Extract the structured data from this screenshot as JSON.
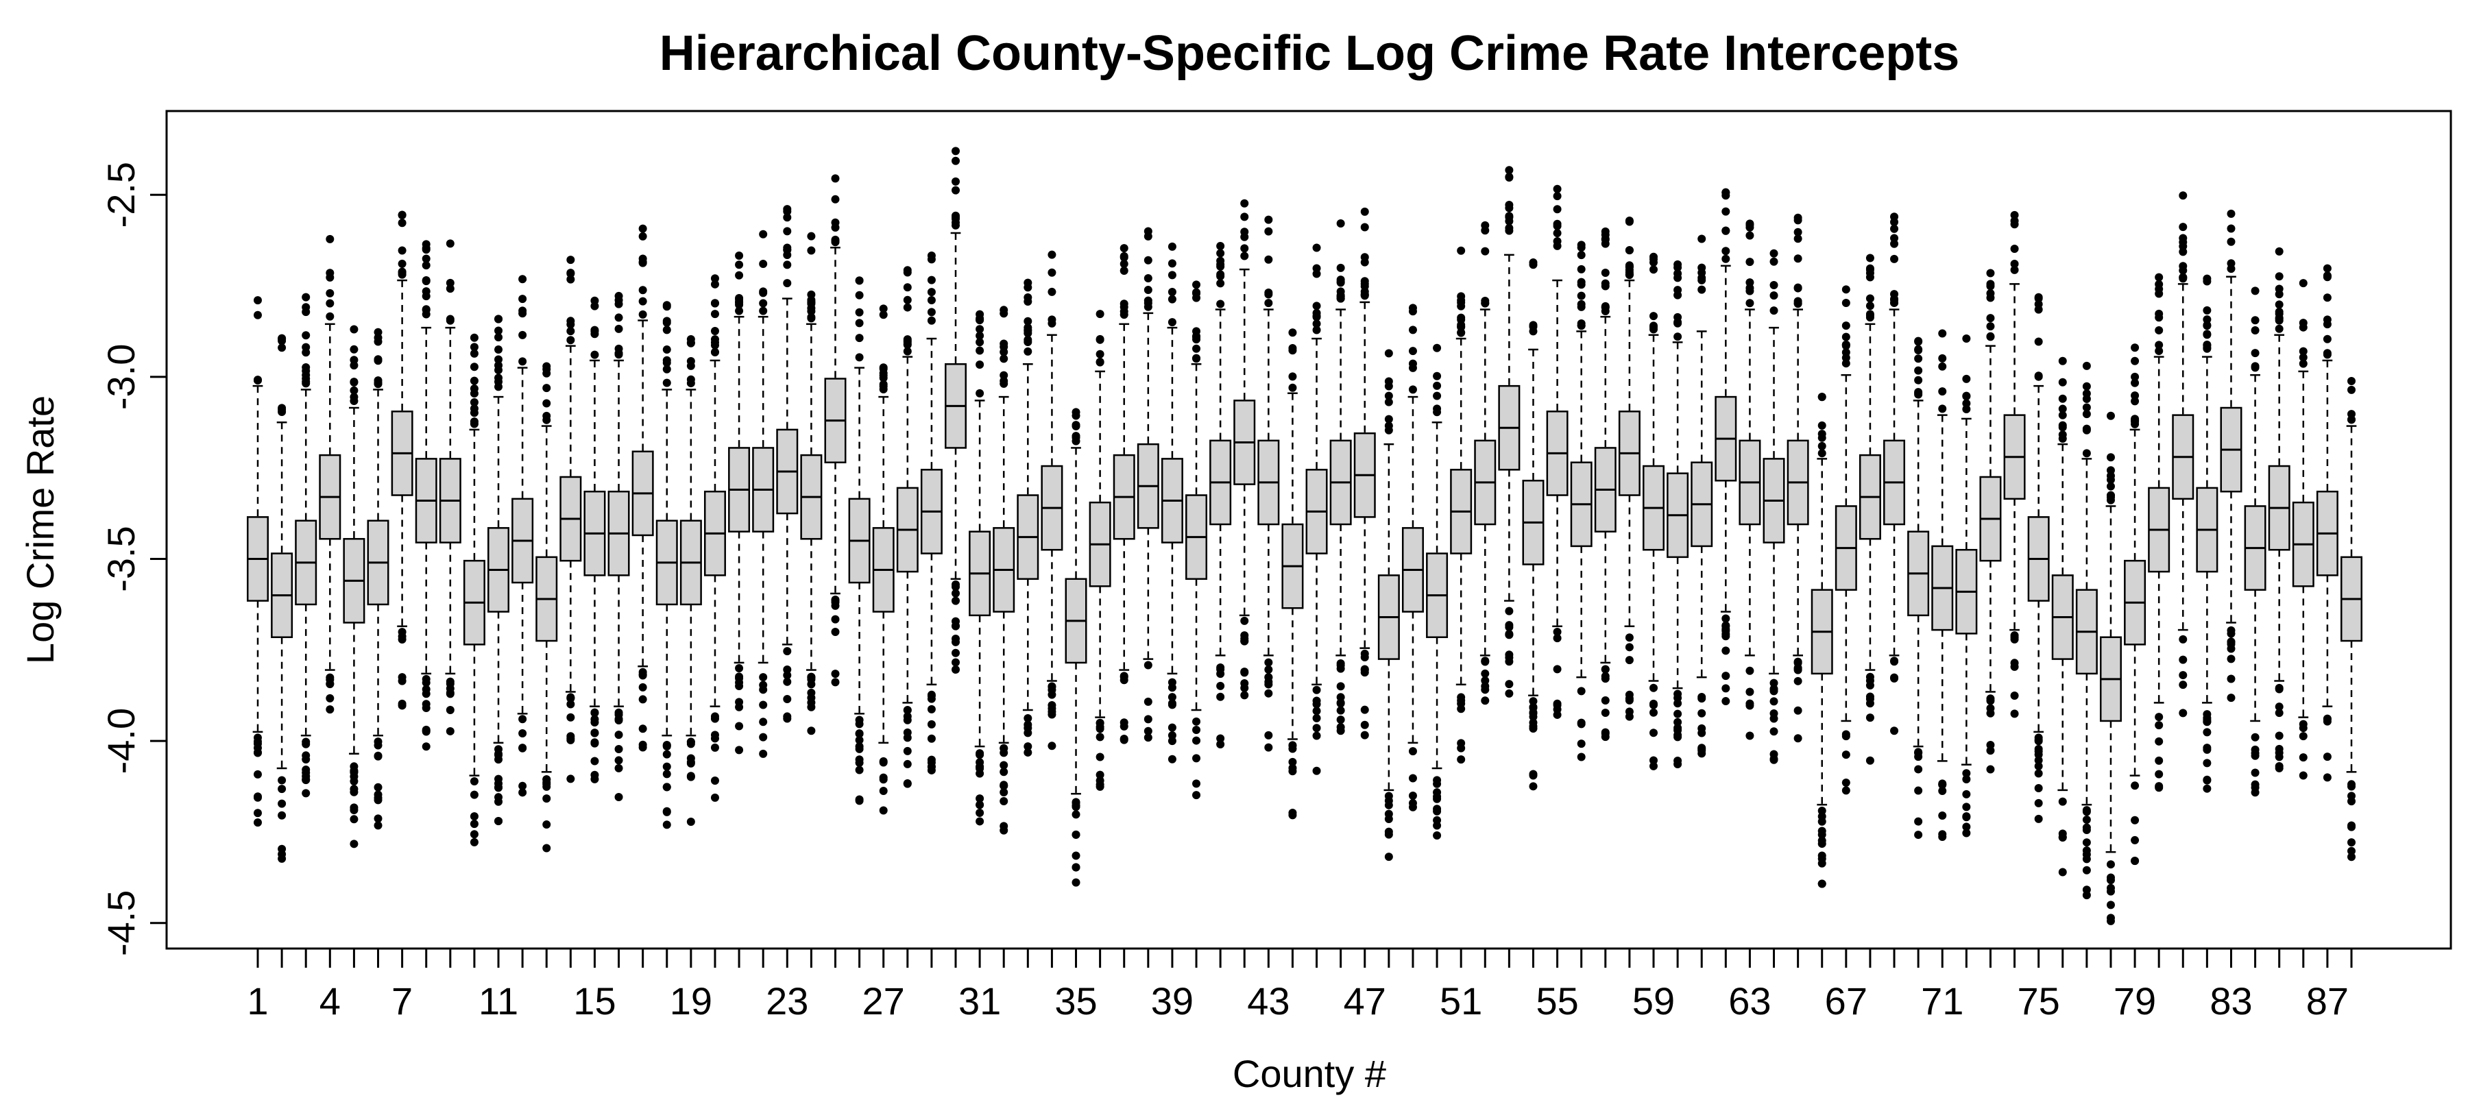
{
  "chart_data": {
    "type": "boxplot",
    "title": "Hierarchical County-Specific Log Crime Rate Intercepts",
    "xlabel": "County #",
    "ylabel": "Log Crime Rate",
    "ylim": [
      -4.57,
      -2.27
    ],
    "yticks": [
      -2.5,
      -3.0,
      -3.5,
      -4.0,
      -4.5
    ],
    "ytick_labels": [
      "-2.5",
      "-3.0",
      "-3.5",
      "-4.0",
      "-4.5"
    ],
    "xtick_labels": [
      "1",
      "4",
      "7",
      "11",
      "15",
      "19",
      "23",
      "27",
      "31",
      "35",
      "39",
      "43",
      "47",
      "51",
      "55",
      "59",
      "63",
      "67",
      "71",
      "75",
      "79",
      "83",
      "87"
    ],
    "xtick_label_positions": [
      1,
      4,
      7,
      11,
      15,
      19,
      23,
      27,
      31,
      35,
      39,
      43,
      47,
      51,
      55,
      59,
      63,
      67,
      71,
      75,
      79,
      83,
      87
    ],
    "n_counties": 88,
    "box_fill": "#d3d3d3",
    "grid": false,
    "medians": [
      -3.5,
      -3.6,
      -3.51,
      -3.33,
      -3.56,
      -3.51,
      -3.21,
      -3.34,
      -3.34,
      -3.62,
      -3.53,
      -3.45,
      -3.61,
      -3.39,
      -3.43,
      -3.43,
      -3.32,
      -3.51,
      -3.51,
      -3.43,
      -3.31,
      -3.31,
      -3.26,
      -3.33,
      -3.12,
      -3.45,
      -3.53,
      -3.42,
      -3.37,
      -3.08,
      -3.54,
      -3.53,
      -3.44,
      -3.36,
      -3.67,
      -3.46,
      -3.33,
      -3.3,
      -3.34,
      -3.44,
      -3.29,
      -3.18,
      -3.29,
      -3.52,
      -3.37,
      -3.29,
      -3.27,
      -3.66,
      -3.53,
      -3.6,
      -3.37,
      -3.29,
      -3.14,
      -3.4,
      -3.21,
      -3.35,
      -3.31,
      -3.21,
      -3.36,
      -3.38,
      -3.35,
      -3.17,
      -3.29,
      -3.34,
      -3.29,
      -3.7,
      -3.47,
      -3.33,
      -3.29,
      -3.54,
      -3.58,
      -3.59,
      -3.39,
      -3.22,
      -3.5,
      -3.66,
      -3.7,
      -3.83,
      -3.62,
      -3.42,
      -3.22,
      -3.42,
      -3.2,
      -3.47,
      -3.36,
      -3.46,
      -3.43,
      -3.61
    ]
  }
}
